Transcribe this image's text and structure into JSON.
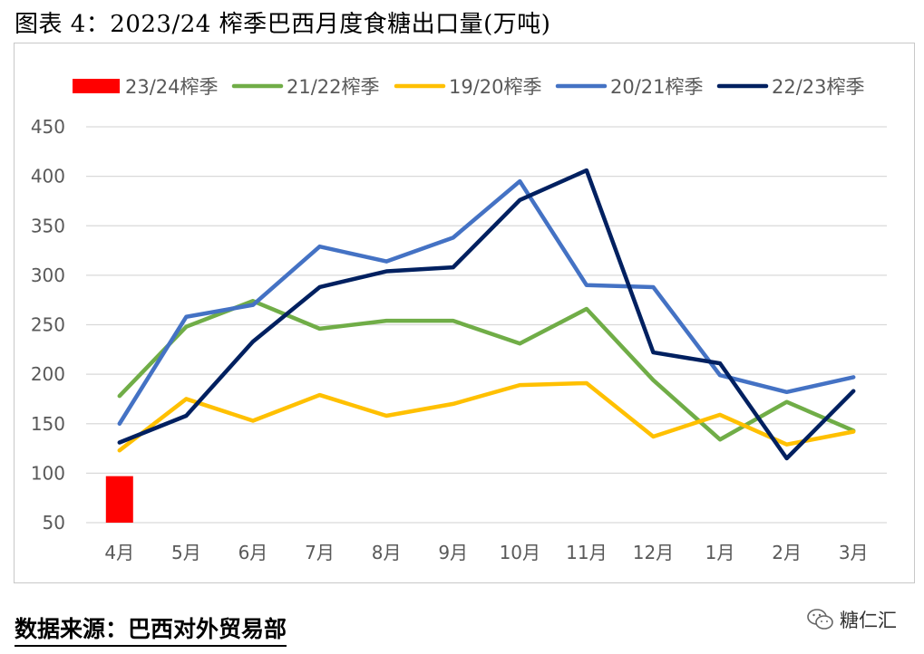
{
  "title": "图表 4：2023/24 榨季巴西月度食糖出口量(万吨)",
  "source": "数据来源：巴西对外贸易部",
  "watermark": "糖仁汇",
  "chart_data": {
    "type": "line",
    "title": "2023/24 榨季巴西月度食糖出口量(万吨)",
    "categories": [
      "4月",
      "5月",
      "6月",
      "7月",
      "8月",
      "9月",
      "10月",
      "11月",
      "12月",
      "1月",
      "2月",
      "3月"
    ],
    "ylim": [
      50,
      450
    ],
    "yticks": [
      50,
      100,
      150,
      200,
      250,
      300,
      350,
      400,
      450
    ],
    "grid": true,
    "legend_position": "top",
    "series": [
      {
        "name": "23/24榨季",
        "kind": "bar",
        "color": "#ff0000",
        "values": [
          97,
          null,
          null,
          null,
          null,
          null,
          null,
          null,
          null,
          null,
          null,
          null
        ]
      },
      {
        "name": "21/22榨季",
        "kind": "line",
        "color": "#70ad47",
        "values": [
          178,
          248,
          274,
          246,
          254,
          254,
          231,
          266,
          194,
          134,
          172,
          143
        ]
      },
      {
        "name": "19/20榨季",
        "kind": "line",
        "color": "#ffc000",
        "values": [
          123,
          175,
          153,
          179,
          158,
          170,
          189,
          191,
          137,
          159,
          129,
          142
        ]
      },
      {
        "name": "20/21榨季",
        "kind": "line",
        "color": "#4472c4",
        "values": [
          150,
          258,
          270,
          329,
          314,
          338,
          395,
          290,
          288,
          199,
          182,
          197
        ]
      },
      {
        "name": "22/23榨季",
        "kind": "line",
        "color": "#002060",
        "values": [
          131,
          158,
          233,
          288,
          304,
          308,
          376,
          406,
          222,
          211,
          115,
          183
        ]
      }
    ]
  }
}
